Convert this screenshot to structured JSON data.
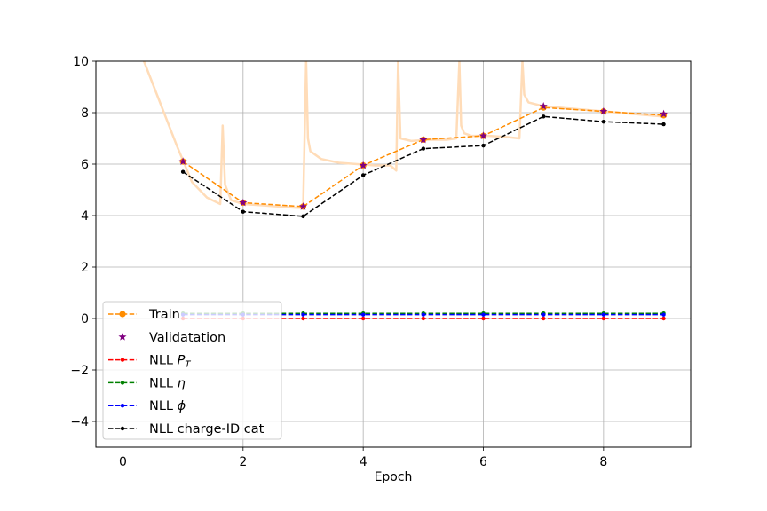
{
  "chart_data": {
    "type": "line",
    "title": "",
    "xlabel": "Epoch",
    "ylabel": "",
    "xlim": [
      -0.45,
      9.45
    ],
    "ylim": [
      -5,
      10
    ],
    "xticks": [
      0,
      2,
      4,
      6,
      8
    ],
    "yticks": [
      -4,
      -2,
      0,
      2,
      4,
      6,
      8,
      10
    ],
    "xtick_labels": [
      "0",
      "2",
      "4",
      "6",
      "8"
    ],
    "ytick_labels": [
      "−4",
      "−2",
      "0",
      "2",
      "4",
      "6",
      "8",
      "10"
    ],
    "grid": true,
    "legend_position": "lower-left",
    "x": [
      1,
      2,
      3,
      4,
      5,
      6,
      7,
      8,
      9
    ],
    "series": [
      {
        "name": "Train",
        "color": "#ff8c00",
        "marker": "circle",
        "linestyle": "dashed",
        "values": [
          6.1,
          4.5,
          4.35,
          5.95,
          6.95,
          7.1,
          8.2,
          8.05,
          7.9
        ]
      },
      {
        "name": "Validatation",
        "color": "#800080",
        "marker": "star",
        "linestyle": "none",
        "values": [
          6.1,
          4.5,
          4.35,
          5.95,
          6.95,
          7.1,
          8.25,
          8.05,
          7.95
        ]
      },
      {
        "name": "NLL $P_T$",
        "color": "#ff0000",
        "marker": "dot",
        "linestyle": "dashed",
        "values": [
          0.0,
          0.0,
          0.0,
          0.0,
          0.0,
          0.0,
          0.0,
          0.0,
          0.0
        ]
      },
      {
        "name": "NLL $\\eta$",
        "color": "#008000",
        "marker": "dot",
        "linestyle": "dashed",
        "values": [
          0.2,
          0.2,
          0.2,
          0.2,
          0.2,
          0.2,
          0.2,
          0.2,
          0.2
        ]
      },
      {
        "name": "NLL $\\phi$",
        "color": "#0000ff",
        "marker": "dot",
        "linestyle": "dashed",
        "values": [
          0.15,
          0.15,
          0.15,
          0.15,
          0.15,
          0.15,
          0.15,
          0.15,
          0.15
        ]
      },
      {
        "name": "NLL charge-ID cat",
        "color": "#000000",
        "marker": "dot",
        "linestyle": "dashed",
        "values": [
          5.7,
          4.15,
          3.97,
          5.57,
          6.6,
          6.72,
          7.85,
          7.65,
          7.55
        ]
      }
    ],
    "background_trace": {
      "color": "#ffdcb8",
      "x": [
        0.35,
        0.6,
        0.9,
        1.15,
        1.4,
        1.62,
        1.66,
        1.7,
        1.8,
        2.0,
        2.3,
        2.6,
        2.9,
        3.0,
        3.05,
        3.08,
        3.12,
        3.3,
        3.6,
        3.9,
        4.2,
        4.45,
        4.55,
        4.58,
        4.62,
        4.8,
        5.1,
        5.4,
        5.55,
        5.6,
        5.63,
        5.68,
        5.8,
        6.1,
        6.4,
        6.6,
        6.65,
        6.68,
        6.75,
        7.0,
        7.5,
        8.0,
        8.5,
        9.0
      ],
      "values": [
        10.0,
        8.5,
        6.7,
        5.3,
        4.7,
        4.45,
        7.5,
        5.2,
        4.6,
        4.45,
        4.4,
        4.35,
        4.3,
        4.3,
        10.0,
        7.0,
        6.5,
        6.2,
        6.05,
        6.0,
        5.95,
        5.95,
        5.75,
        10.0,
        7.0,
        6.9,
        6.95,
        6.95,
        7.0,
        10.0,
        7.5,
        7.2,
        7.1,
        7.1,
        7.05,
        7.0,
        10.0,
        8.7,
        8.4,
        8.25,
        8.15,
        8.05,
        7.95,
        7.85
      ]
    }
  }
}
